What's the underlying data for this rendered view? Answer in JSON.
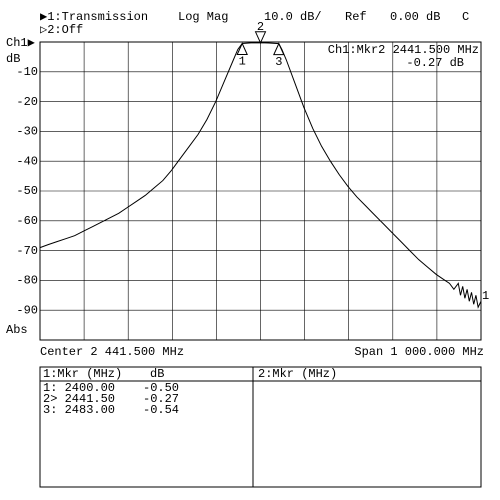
{
  "chart_data": {
    "type": "line",
    "header": {
      "trace1": "▶1:Transmission",
      "trace2": "▷2:Off",
      "format": "Log Mag",
      "scale": "10.0 dB/",
      "ref": "Ref",
      "ref_value": "0.00 dB",
      "mode": "C"
    },
    "channel_label": "Ch1▶",
    "y_unit": "dB",
    "abs_label": "Abs",
    "marker_readout": [
      "Ch1:Mkr2 2441.500 MHz",
      "-0.27 dB"
    ],
    "center_label": "Center 2 441.500 MHz",
    "span_label": "Span 1 000.000 MHz",
    "trace_end_label": "1",
    "xlim": [
      1941.5,
      2941.5
    ],
    "ylim": [
      -100,
      0
    ],
    "yticks": [
      -10,
      -20,
      -30,
      -40,
      -50,
      -60,
      -70,
      -80,
      -90
    ],
    "grid": true,
    "x": [
      1941.5,
      1960,
      1980,
      2000,
      2020,
      2040,
      2060,
      2080,
      2100,
      2120,
      2140,
      2160,
      2180,
      2200,
      2220,
      2240,
      2260,
      2280,
      2300,
      2320,
      2340,
      2360,
      2380,
      2390,
      2400,
      2420,
      2441.5,
      2460,
      2483,
      2490,
      2500,
      2520,
      2540,
      2560,
      2580,
      2600,
      2620,
      2640,
      2660,
      2680,
      2700,
      2720,
      2740,
      2760,
      2780,
      2800,
      2820,
      2840,
      2860,
      2870,
      2880,
      2890,
      2895,
      2900,
      2905,
      2910,
      2915,
      2920,
      2925,
      2930,
      2935,
      2941.5
    ],
    "series": [
      {
        "name": "1:Transmission",
        "color": "#000000",
        "values": [
          -69,
          -68,
          -67,
          -66,
          -65,
          -63.5,
          -62,
          -60.5,
          -59,
          -57.5,
          -55.5,
          -53.5,
          -51.5,
          -49,
          -46.5,
          -43,
          -39,
          -35,
          -31,
          -26,
          -20,
          -13,
          -6,
          -2.5,
          -0.5,
          -0.3,
          -0.27,
          -0.35,
          -0.54,
          -2.5,
          -6,
          -14,
          -22,
          -29,
          -35,
          -40,
          -44.5,
          -48.5,
          -52,
          -55,
          -58,
          -61,
          -64,
          -67,
          -70,
          -73,
          -75.5,
          -78,
          -80,
          -81,
          -83,
          -81,
          -85,
          -82,
          -86,
          -83,
          -87,
          -84,
          -88,
          -85,
          -89,
          -87
        ]
      }
    ],
    "markers": [
      {
        "label": "1",
        "x": 2400,
        "y": -0.5
      },
      {
        "label": "2",
        "x": 2441.5,
        "y": -0.27
      },
      {
        "label": "3",
        "x": 2483,
        "y": -0.54
      }
    ]
  },
  "marker_table": {
    "left_header": [
      "1:Mkr (MHz)",
      "dB"
    ],
    "right_header": "2:Mkr (MHz)",
    "rows": [
      [
        "1: 2400.00",
        "-0.50"
      ],
      [
        "2> 2441.50",
        "-0.27"
      ],
      [
        "3: 2483.00",
        "-0.54"
      ]
    ]
  }
}
